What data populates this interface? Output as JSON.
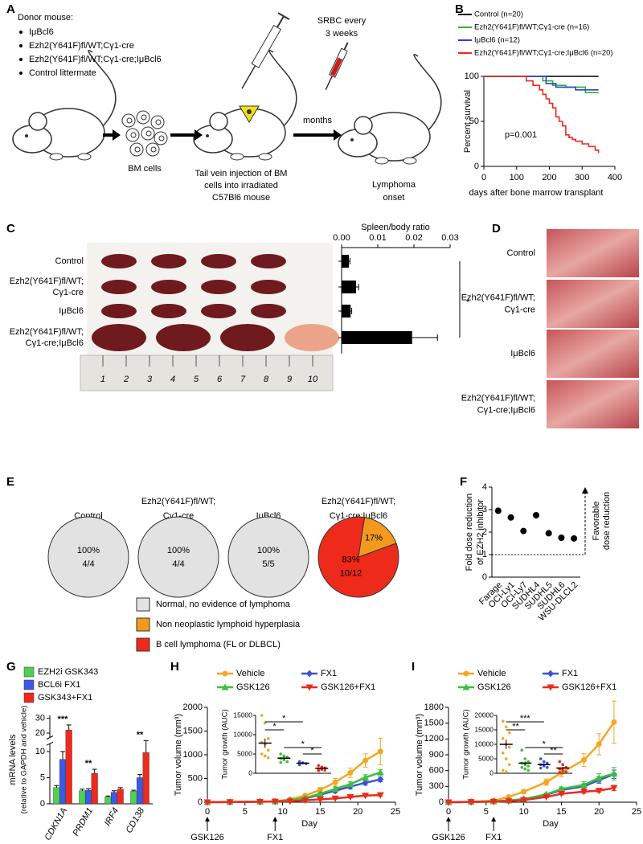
{
  "panel_labels": [
    "A",
    "B",
    "C",
    "D",
    "E",
    "F",
    "G",
    "H",
    "I"
  ],
  "schematic": {
    "donor_title": "Donor mouse:",
    "donors": [
      "IμBcl6",
      "Ezh2(Y641F)fl/WT;Cγ1-cre",
      "Ezh2(Y641F)fl/WT;Cγ1-cre;IμBcl6",
      "Control littermate"
    ],
    "bm_cells": "BM cells",
    "injection": [
      "Tail vein injection of BM",
      "cells into irradiated",
      "C57Bl6 mouse"
    ],
    "srbc": [
      "SRBC every",
      "3 weeks"
    ],
    "months": "months",
    "onset": [
      "Lymphoma",
      "onset"
    ]
  },
  "spleen_photo": {
    "ruler": [
      "1",
      "2",
      "3",
      "4",
      "5",
      "6",
      "7",
      "8",
      "9",
      "10"
    ]
  },
  "gross_photo": {
    "labels": [
      [
        "Control"
      ],
      [
        "Ezh2(Y641F)fl/WT;",
        "Cγ1-cre"
      ],
      [
        "IμBcl6"
      ],
      [
        "Ezh2(Y641F)fl/WT;",
        "Cγ1-cre;IμBcl6"
      ]
    ]
  },
  "chart_data": [
    {
      "type": "line",
      "step": true,
      "ylabel": "Percent survival",
      "xlabel": "days after bone marrow transplant",
      "annotation": "p=0.001",
      "xlim": [
        0,
        400
      ],
      "xticks": [
        0,
        100,
        200,
        300,
        400
      ],
      "ylim": [
        0,
        100
      ],
      "yticks": [
        0,
        50,
        100
      ],
      "series": [
        {
          "name": "Control (n=20)",
          "color": "#000000",
          "x": [
            0,
            350
          ],
          "values": [
            100,
            100
          ]
        },
        {
          "name": "Ezh2(Y641F)fl/WT;Cγ1-cre (n=16)",
          "color": "#2db32d",
          "x": [
            0,
            180,
            210,
            250,
            310,
            350
          ],
          "values": [
            100,
            95,
            90,
            88,
            82,
            82
          ]
        },
        {
          "name": "IμBcl6 (n=12)",
          "color": "#2b3fd6",
          "x": [
            0,
            190,
            220,
            280,
            350
          ],
          "values": [
            100,
            92,
            88,
            85,
            85
          ]
        },
        {
          "name": "Ezh2(Y641F)fl/WT;Cγ1-cre;IμBcl6 (n=20)",
          "color": "#ee2a1b",
          "x": [
            0,
            130,
            150,
            170,
            180,
            190,
            200,
            210,
            220,
            230,
            240,
            250,
            260,
            270,
            280,
            300,
            320,
            340,
            350
          ],
          "values": [
            100,
            95,
            90,
            85,
            80,
            75,
            70,
            65,
            55,
            50,
            45,
            35,
            32,
            30,
            28,
            25,
            22,
            18,
            15
          ]
        }
      ]
    },
    {
      "type": "bar",
      "orientation": "horizontal",
      "title": "Spleen/body ratio",
      "categories": [
        [
          "Control"
        ],
        [
          "Ezh2(Y641F)fl/WT;",
          "Cγ1-cre"
        ],
        [
          "IμBcl6"
        ],
        [
          "Ezh2(Y641F)fl/WT;",
          "Cγ1-cre;IμBcl6"
        ]
      ],
      "values": [
        0.002,
        0.004,
        0.0025,
        0.0195
      ],
      "errors": [
        0.0003,
        0.0007,
        0.0003,
        0.007
      ],
      "color": "#000000",
      "xlim": [
        0,
        0.03
      ],
      "xticks": [
        {
          "value": 0,
          "label": "0.00"
        },
        {
          "value": 0.01,
          "label": "0.01"
        },
        {
          "value": 0.02,
          "label": "0.02"
        },
        {
          "value": 0.03,
          "label": "0.03"
        }
      ],
      "annotation": "*"
    },
    {
      "type": "pie",
      "pies": [
        {
          "title": [
            "Control"
          ],
          "slices": [
            {
              "value": 100,
              "label": "100%",
              "color": "#e2e2e2"
            }
          ],
          "count": "4/4"
        },
        {
          "title": [
            "Ezh2(Y641F)fl/WT;",
            "Cγ1-cre"
          ],
          "slices": [
            {
              "value": 100,
              "label": "100%",
              "color": "#e2e2e2"
            }
          ],
          "count": "4/4"
        },
        {
          "title": [
            "IμBcl6"
          ],
          "slices": [
            {
              "value": 100,
              "label": "100%",
              "color": "#e2e2e2"
            }
          ],
          "count": "5/5"
        },
        {
          "title": [
            "Ezh2(Y641F)fl/WT;",
            "Cγ1-cre;IμBcl6"
          ],
          "slices": [
            {
              "value": 83,
              "label": "83%",
              "color": "#ee2a1b"
            },
            {
              "value": 17,
              "label": "17%",
              "color": "#f39a1e"
            }
          ],
          "count": "10/12"
        }
      ],
      "legend": [
        {
          "name": "Normal, no evidence of lymphoma",
          "color": "#e2e2e2"
        },
        {
          "name": "Non neoplastic lymphoid hyperplasia",
          "color": "#f39a1e"
        },
        {
          "name": "B cell lymphoma (FL or DLBCL)",
          "color": "#ee2a1b"
        }
      ]
    },
    {
      "type": "scatter",
      "ylabel": [
        "Fold dose reduction",
        "of EZH2 inhibitor"
      ],
      "categories": [
        "Farage",
        "OCI-Ly1",
        "OCI-Ly7",
        "SUDHL4",
        "SUDHL5",
        "SUDHL6",
        "WSU-DLCL2"
      ],
      "values": [
        2.95,
        2.65,
        2.05,
        2.75,
        1.95,
        1.75,
        1.72
      ],
      "color": "#000000",
      "ylim": [
        0,
        4
      ],
      "yticks": [
        0,
        1,
        2,
        3,
        4
      ],
      "reference_line": 1,
      "annotation": [
        "Favorable",
        "dose reduction"
      ]
    },
    {
      "type": "bar",
      "orientation": "vertical",
      "ylabel": [
        "mRNA levels",
        "(relative to GAPDH and vehicle)"
      ],
      "categories": [
        "CDKN1A",
        "PRDM1",
        "IRF4",
        "CD138"
      ],
      "series": [
        {
          "name": "EZH2i GSK343",
          "color": "#4ed14e",
          "values": [
            3.1,
            2.5,
            1.3,
            2.4
          ],
          "errors": [
            0.4,
            0.3,
            0.2,
            0.2
          ]
        },
        {
          "name": "BCL6i FX1",
          "color": "#3c5ae6",
          "values": [
            8.5,
            2.6,
            2.2,
            5.0
          ],
          "errors": [
            1.5,
            0.3,
            0.3,
            0.6
          ]
        },
        {
          "name": "GSK343+FX1",
          "color": "#ee2a1b",
          "values": [
            22,
            5.8,
            2.8,
            9.8
          ],
          "errors": [
            3.5,
            0.8,
            0.3,
            1.8
          ]
        }
      ],
      "ylim": [
        0,
        32
      ],
      "ybreak": [
        11.5,
        17
      ],
      "yticks": [
        0,
        5,
        10,
        20,
        30
      ],
      "annotations": [
        {
          "text": "***",
          "category": 0
        },
        {
          "text": "**",
          "category": 1
        },
        {
          "text": "**",
          "category": 3
        }
      ]
    },
    {
      "type": "line",
      "ylabel": "Tumor volume (mm³)",
      "xlabel": "Day",
      "xlim": [
        0,
        25
      ],
      "xticks": [
        0,
        5,
        10,
        15,
        20,
        25
      ],
      "ylim": [
        0,
        2000
      ],
      "yticks": [
        0,
        500,
        1000,
        1500,
        2000
      ],
      "x": [
        0,
        3,
        7,
        9,
        11,
        13,
        15,
        17,
        19,
        21,
        23
      ],
      "series": [
        {
          "name": "Vehicle",
          "color": "#f5a623",
          "marker": "circle",
          "values": [
            0,
            5,
            10,
            20,
            60,
            140,
            260,
            420,
            620,
            880,
            1070
          ],
          "errors": [
            0,
            2,
            3,
            5,
            15,
            30,
            50,
            80,
            100,
            140,
            280
          ]
        },
        {
          "name": "FX1",
          "color": "#3f51d6",
          "marker": "diamond",
          "values": [
            0,
            5,
            10,
            15,
            35,
            80,
            160,
            240,
            330,
            410,
            480
          ],
          "errors": [
            0,
            2,
            2,
            4,
            10,
            20,
            30,
            40,
            50,
            50,
            50
          ]
        },
        {
          "name": "GSK126",
          "color": "#3dbf3d",
          "marker": "triangle-up",
          "values": [
            0,
            5,
            10,
            15,
            40,
            90,
            180,
            280,
            380,
            520,
            630
          ],
          "errors": [
            0,
            2,
            2,
            4,
            10,
            20,
            30,
            40,
            50,
            60,
            60
          ]
        },
        {
          "name": "GSK126+FX1",
          "color": "#ee2a1b",
          "marker": "triangle-down",
          "values": [
            0,
            5,
            10,
            15,
            20,
            40,
            60,
            80,
            110,
            140,
            150
          ],
          "errors": [
            0,
            2,
            2,
            3,
            5,
            10,
            15,
            15,
            20,
            20,
            20
          ]
        }
      ],
      "arrows": [
        {
          "label": "GSK126",
          "x": 0
        },
        {
          "label": "FX1",
          "x": 9
        }
      ],
      "inset": {
        "ylabel": "Tumor growth (AUC)",
        "ylim": [
          0,
          15000
        ],
        "yticks": [
          0,
          5000,
          10000,
          15000
        ],
        "groups": [
          {
            "color": "#f5a623",
            "points": [
              15000,
              13000,
              9000,
              8000,
              7500,
              6000,
              5000,
              4500,
              4000
            ],
            "mean": 7800,
            "error": 1200
          },
          {
            "color": "#3dbf3d",
            "points": [
              5000,
              4500,
              4200,
              3800,
              3500,
              3000,
              2800
            ],
            "mean": 3900,
            "error": 350
          },
          {
            "color": "#3f51d6",
            "points": [
              3000,
              2700,
              2500,
              2200
            ],
            "mean": 2600,
            "error": 250
          },
          {
            "color": "#ee2a1b",
            "points": [
              2000,
              1600,
              1400,
              1200,
              1000,
              800,
              700
            ],
            "mean": 1300,
            "error": 200
          }
        ],
        "comparisons": [
          {
            "text": "*",
            "from": 0,
            "to": 1
          },
          {
            "text": "*",
            "from": 0,
            "to": 2
          },
          {
            "text": "*",
            "from": 1,
            "to": 3
          },
          {
            "text": "*",
            "from": 2,
            "to": 3
          }
        ]
      }
    },
    {
      "type": "line",
      "ylabel": "Tumor volume (mm³)",
      "xlabel": "Day",
      "xlim": [
        0,
        25
      ],
      "xticks": [
        0,
        5,
        10,
        15,
        20,
        25
      ],
      "ylim": [
        0,
        1800
      ],
      "yticks": [
        0,
        300,
        600,
        900,
        1200,
        1500,
        1800
      ],
      "x": [
        0,
        3,
        6,
        8,
        10,
        13,
        15,
        18,
        20,
        22
      ],
      "series": [
        {
          "name": "Vehicle",
          "color": "#f5a623",
          "marker": "circle",
          "values": [
            0,
            5,
            30,
            100,
            200,
            380,
            560,
            800,
            1100,
            1520
          ],
          "errors": [
            0,
            3,
            10,
            20,
            40,
            60,
            80,
            120,
            200,
            400
          ]
        },
        {
          "name": "FX1",
          "color": "#3f51d6",
          "marker": "diamond",
          "values": [
            0,
            5,
            15,
            30,
            60,
            140,
            230,
            300,
            420,
            530
          ],
          "errors": [
            0,
            2,
            4,
            8,
            15,
            25,
            40,
            50,
            60,
            80
          ]
        },
        {
          "name": "GSK126",
          "color": "#3dbf3d",
          "marker": "triangle-up",
          "values": [
            0,
            5,
            15,
            30,
            60,
            150,
            250,
            330,
            460,
            540
          ],
          "errors": [
            0,
            2,
            4,
            8,
            15,
            25,
            40,
            60,
            80,
            120
          ]
        },
        {
          "name": "GSK126+FX1",
          "color": "#ee2a1b",
          "marker": "triangle-down",
          "values": [
            0,
            5,
            10,
            20,
            40,
            100,
            160,
            200,
            220,
            270
          ],
          "errors": [
            0,
            2,
            3,
            5,
            10,
            15,
            20,
            30,
            30,
            50
          ]
        }
      ],
      "arrows": [
        {
          "label": "GSK126",
          "x": 0
        },
        {
          "label": "FX1",
          "x": 6
        }
      ],
      "inset": {
        "ylabel": "Tumor growth (AUC)",
        "ylim": [
          0,
          20000
        ],
        "yticks": [
          0,
          5000,
          10000,
          15000,
          20000
        ],
        "groups": [
          {
            "color": "#f5a623",
            "points": [
              18000,
              16000,
              14000,
              12000,
              10000,
              9000,
              7000,
              5000,
              3000,
              1000,
              500
            ],
            "mean": 10000,
            "error": 1600
          },
          {
            "color": "#3dbf3d",
            "points": [
              8000,
              5000,
              4000,
              3500,
              3000,
              2500,
              2000,
              1500,
              1000
            ],
            "mean": 3500,
            "error": 600
          },
          {
            "color": "#3f51d6",
            "points": [
              5000,
              4000,
              3500,
              3000,
              2500,
              2000,
              1800
            ],
            "mean": 3000,
            "error": 400
          },
          {
            "color": "#ee2a1b",
            "points": [
              4000,
              3000,
              2000,
              1500,
              1000,
              500,
              300
            ],
            "mean": 1800,
            "error": 450
          }
        ],
        "comparisons": [
          {
            "text": "**",
            "from": 0,
            "to": 1
          },
          {
            "text": "***",
            "from": 0,
            "to": 2
          },
          {
            "text": "*",
            "from": 1,
            "to": 3
          },
          {
            "text": "**",
            "from": 2,
            "to": 3
          }
        ]
      }
    }
  ]
}
